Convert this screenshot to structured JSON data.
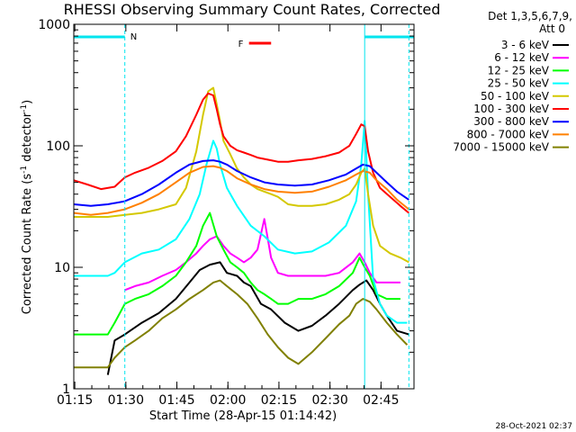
{
  "chart_data": {
    "type": "line",
    "title": "RHESSI Observing Summary Count Rates, Corrected",
    "xlabel": "Start Time (28-Apr-15 01:14:42)",
    "ylabel": "Corrected Count Rate (s",
    "ylabel_exp1": "-1",
    "ylabel_mid": " detector",
    "ylabel_exp2": "-1",
    "ylabel_end": ")",
    "y_scale": "log",
    "ylim": [
      1,
      1000
    ],
    "xlim_minutes": [
      0,
      100
    ],
    "x_ticks": [
      {
        "label": "01:15",
        "minute": 0.3
      },
      {
        "label": "01:30",
        "minute": 15.3
      },
      {
        "label": "01:45",
        "minute": 30.3
      },
      {
        "label": "02:00",
        "minute": 45.3
      },
      {
        "label": "02:15",
        "minute": 60.3
      },
      {
        "label": "02:30",
        "minute": 75.3
      },
      {
        "label": "02:45",
        "minute": 90.3
      }
    ],
    "y_ticks": [
      {
        "label": "1",
        "value": 1
      },
      {
        "label": "10",
        "value": 10
      },
      {
        "label": "100",
        "value": 100
      },
      {
        "label": "1000",
        "value": 1000
      }
    ],
    "legend_header": [
      "Det 1,3,5,6,7,9,",
      "Att 0"
    ],
    "annotations": {
      "night_label": "N",
      "flare_label": "F",
      "night_segments": [
        [
          0,
          15
        ],
        [
          85.5,
          100
        ]
      ],
      "flare_segment": [
        51.5,
        58
      ],
      "vertical_markers": [
        15,
        85.5,
        98.5
      ]
    },
    "footer_timestamp": "28-Oct-2021 02:37",
    "series": [
      {
        "name": "3 - 6 keV",
        "color": "#000000",
        "x": [
          10,
          12,
          15,
          20,
          25,
          30,
          34,
          37,
          40,
          43,
          45,
          48,
          50,
          52,
          55,
          58,
          62,
          66,
          70,
          74,
          78,
          82,
          84,
          86,
          88,
          90,
          92,
          95,
          98.5
        ],
        "y": [
          1.3,
          2.5,
          2.8,
          3.5,
          4.2,
          5.5,
          7.5,
          9.5,
          10.5,
          11,
          9,
          8.5,
          7.5,
          7,
          5,
          4.5,
          3.5,
          3,
          3.3,
          4,
          5,
          6.5,
          7.2,
          7.8,
          6.5,
          5,
          4,
          3,
          2.8
        ]
      },
      {
        "name": "6 - 12 keV",
        "color": "#ff00ff",
        "x": [
          15,
          18,
          22,
          26,
          30,
          33,
          36,
          38,
          40,
          42,
          44,
          46,
          48,
          50,
          52,
          54,
          56,
          58,
          60,
          63,
          66,
          70,
          74,
          78,
          82,
          84,
          85.5,
          87,
          89,
          92,
          96
        ],
        "y": [
          6.5,
          7,
          7.5,
          8.5,
          9.5,
          11,
          13,
          15,
          17,
          18,
          15,
          13,
          12,
          11,
          12,
          14,
          25,
          12,
          9,
          8.5,
          8.5,
          8.5,
          8.5,
          9,
          11,
          13,
          11,
          9,
          7.5,
          7.5,
          7.5
        ]
      },
      {
        "name": "12 - 25 keV",
        "color": "#00ff00",
        "x": [
          0,
          5,
          10,
          12,
          15,
          18,
          22,
          26,
          30,
          33,
          36,
          38,
          40,
          42,
          44,
          46,
          48,
          50,
          52,
          54,
          56,
          58,
          60,
          63,
          66,
          70,
          74,
          78,
          82,
          84,
          85.5,
          87,
          89,
          92,
          96
        ],
        "y": [
          2.8,
          2.8,
          2.8,
          3.5,
          5,
          5.5,
          6,
          7,
          8.5,
          11,
          15,
          22,
          28,
          18,
          14,
          11,
          10,
          9,
          7.5,
          6.5,
          6,
          5.5,
          5,
          5,
          5.5,
          5.5,
          6,
          7,
          9,
          12,
          10,
          8.5,
          6,
          5.5,
          5.5
        ]
      },
      {
        "name": "25 - 50 keV",
        "color": "#00ffff",
        "x": [
          0,
          5,
          10,
          12,
          15,
          20,
          25,
          30,
          34,
          37,
          39,
          41,
          42,
          43,
          45,
          48,
          52,
          56,
          60,
          65,
          70,
          75,
          80,
          83,
          84.5,
          85.5,
          86.5,
          88,
          90,
          92,
          95,
          98
        ],
        "y": [
          8.5,
          8.5,
          8.5,
          9,
          11,
          13,
          14,
          17,
          25,
          40,
          70,
          110,
          95,
          70,
          45,
          32,
          22,
          18,
          14,
          13,
          13.5,
          16,
          22,
          35,
          70,
          160,
          40,
          8,
          5,
          4,
          3.5,
          3.5
        ]
      },
      {
        "name": "50 - 100 keV",
        "color": "#d4c800",
        "x": [
          0,
          5,
          10,
          15,
          20,
          25,
          30,
          33,
          36,
          38,
          39.5,
          41,
          42,
          43,
          44,
          46,
          48,
          50,
          52,
          54,
          56,
          58,
          60,
          63,
          66,
          70,
          74,
          78,
          81,
          83,
          84.5,
          85.5,
          86.5,
          88,
          90,
          93,
          96,
          98.5
        ],
        "y": [
          26,
          26,
          26,
          27,
          28,
          30,
          33,
          45,
          90,
          180,
          280,
          300,
          220,
          160,
          110,
          85,
          65,
          55,
          48,
          44,
          42,
          40,
          38,
          33,
          32,
          32,
          33,
          36,
          40,
          48,
          60,
          65,
          40,
          22,
          15,
          13,
          12,
          11
        ]
      },
      {
        "name": "100 - 300 keV",
        "color": "#ff0000",
        "x": [
          0,
          4,
          8,
          12,
          15,
          18,
          22,
          26,
          30,
          33,
          36,
          38,
          39.5,
          41,
          42,
          43,
          44,
          46,
          48,
          50,
          52,
          54,
          56,
          58,
          60,
          63,
          66,
          70,
          74,
          78,
          81,
          83,
          84.5,
          85.5,
          86.5,
          88,
          90,
          93,
          96,
          98.5
        ],
        "y": [
          52,
          48,
          44,
          46,
          55,
          60,
          66,
          75,
          90,
          120,
          180,
          240,
          270,
          260,
          200,
          150,
          120,
          100,
          92,
          88,
          84,
          80,
          78,
          76,
          74,
          74,
          76,
          78,
          82,
          88,
          100,
          125,
          150,
          145,
          90,
          60,
          45,
          38,
          32,
          28
        ]
      },
      {
        "name": "300 - 800 keV",
        "color": "#0000ff",
        "x": [
          0,
          5,
          10,
          15,
          20,
          25,
          30,
          34,
          38,
          41,
          43,
          45,
          48,
          52,
          56,
          60,
          65,
          70,
          75,
          80,
          83,
          85,
          87,
          89,
          92,
          95,
          98.5
        ],
        "y": [
          33,
          32,
          33,
          35,
          40,
          48,
          60,
          70,
          75,
          76,
          74,
          70,
          62,
          55,
          50,
          48,
          47,
          48,
          52,
          58,
          65,
          70,
          68,
          60,
          50,
          42,
          36
        ]
      },
      {
        "name": "800 - 7000 keV",
        "color": "#ff8000",
        "x": [
          0,
          5,
          10,
          15,
          20,
          25,
          30,
          34,
          38,
          41,
          43,
          45,
          48,
          52,
          56,
          60,
          65,
          70,
          75,
          80,
          83,
          85,
          87,
          89,
          92,
          95,
          98.5
        ],
        "y": [
          28,
          27,
          28,
          30,
          34,
          40,
          50,
          60,
          67,
          68,
          66,
          62,
          54,
          48,
          44,
          42,
          41,
          42,
          46,
          52,
          58,
          62,
          60,
          52,
          44,
          36,
          30
        ]
      },
      {
        "name": "7000 - 15000 keV",
        "color": "#808000",
        "x": [
          0,
          5,
          10,
          12,
          15,
          18,
          22,
          26,
          30,
          34,
          38,
          41,
          43,
          45,
          48,
          51,
          54,
          57,
          60,
          63,
          66,
          70,
          74,
          78,
          81,
          83,
          85,
          87,
          89,
          92,
          95,
          98
        ],
        "y": [
          1.5,
          1.5,
          1.5,
          1.8,
          2.2,
          2.5,
          3,
          3.8,
          4.5,
          5.5,
          6.5,
          7.5,
          7.8,
          7,
          6,
          5,
          3.8,
          2.8,
          2.2,
          1.8,
          1.6,
          2,
          2.6,
          3.4,
          4,
          5,
          5.5,
          5.2,
          4.5,
          3.5,
          2.8,
          2.3
        ]
      }
    ]
  }
}
